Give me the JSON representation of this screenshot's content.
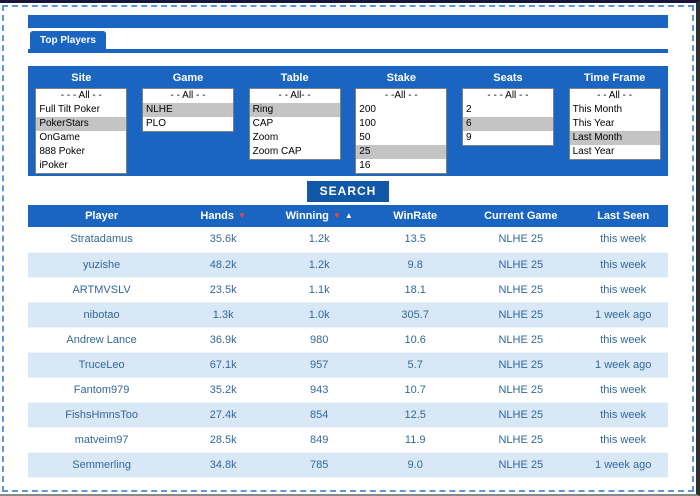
{
  "tab": {
    "label": "Top Players"
  },
  "search": {
    "label": "SEARCH"
  },
  "colors": {
    "primary_blue": "#1b65c2",
    "search_button_blue": "#1157a8",
    "row_alt_blue": "#d9e8f7",
    "row_text_blue": "#33689c",
    "selected_option_gray": "#c4c4c4"
  },
  "filters": [
    {
      "name": "site",
      "label": "Site",
      "options": [
        "- - - All - -",
        "Full Tilt Poker",
        "PokerStars",
        "OnGame",
        "888 Poker",
        "iPoker"
      ],
      "selected": [
        2
      ]
    },
    {
      "name": "game",
      "label": "Game",
      "options": [
        "- - All - -",
        "NLHE",
        "PLO"
      ],
      "selected": [
        1
      ]
    },
    {
      "name": "table",
      "label": "Table",
      "options": [
        "- - All- -",
        "Ring",
        "CAP",
        "Zoom",
        "Zoom CAP"
      ],
      "selected": [
        1
      ]
    },
    {
      "name": "stake",
      "label": "Stake",
      "options": [
        "- -All - -",
        "200",
        "100",
        "50",
        "25",
        "16"
      ],
      "selected": [
        4
      ]
    },
    {
      "name": "seats",
      "label": "Seats",
      "options": [
        "- - - All - -",
        "2",
        "6",
        "9"
      ],
      "selected": [
        2
      ]
    },
    {
      "name": "time_frame",
      "label": "Time Frame",
      "options": [
        "- - All - -",
        "This Month",
        "This Year",
        "Last Month",
        "Last Year"
      ],
      "selected": [
        3
      ]
    }
  ],
  "results": {
    "columns": [
      {
        "label": "Player",
        "sort": []
      },
      {
        "label": "Hands",
        "sort": [
          "desc"
        ]
      },
      {
        "label": "Winning",
        "sort": [
          "desc",
          "asc"
        ]
      },
      {
        "label": "WinRate",
        "sort": []
      },
      {
        "label": "Current Game",
        "sort": []
      },
      {
        "label": "Last Seen",
        "sort": []
      }
    ],
    "column_widths_pct": [
      23,
      15,
      15,
      15,
      18,
      14
    ],
    "rows": [
      [
        "Stratadamus",
        "35.6k",
        "1.2k",
        "13.5",
        "NLHE 25",
        "this week"
      ],
      [
        "yuzishe",
        "48.2k",
        "1.2k",
        "9.8",
        "NLHE 25",
        "this week"
      ],
      [
        "ARTMVSLV",
        "23.5k",
        "1.1k",
        "18.1",
        "NLHE 25",
        "this week"
      ],
      [
        "nibotao",
        "1.3k",
        "1.0k",
        "305.7",
        "NLHE 25",
        "1 week ago"
      ],
      [
        "Andrew Lance",
        "36.9k",
        "980",
        "10.6",
        "NLHE 25",
        "this week"
      ],
      [
        "TruceLeo",
        "67.1k",
        "957",
        "5.7",
        "NLHE 25",
        "1 week ago"
      ],
      [
        "Fantom979",
        "35.2k",
        "943",
        "10.7",
        "NLHE 25",
        "this week"
      ],
      [
        "FishsHmnsToo",
        "27.4k",
        "854",
        "12.5",
        "NLHE 25",
        "this week"
      ],
      [
        "matveim97",
        "28.5k",
        "849",
        "11.9",
        "NLHE 25",
        "this week"
      ],
      [
        "Semmerling",
        "34.8k",
        "785",
        "9.0",
        "NLHE 25",
        "1 week ago"
      ]
    ],
    "cell_names": [
      "player-name",
      "hands-value",
      "winning-value",
      "winrate-value",
      "current-game-value",
      "last-seen-value"
    ]
  }
}
